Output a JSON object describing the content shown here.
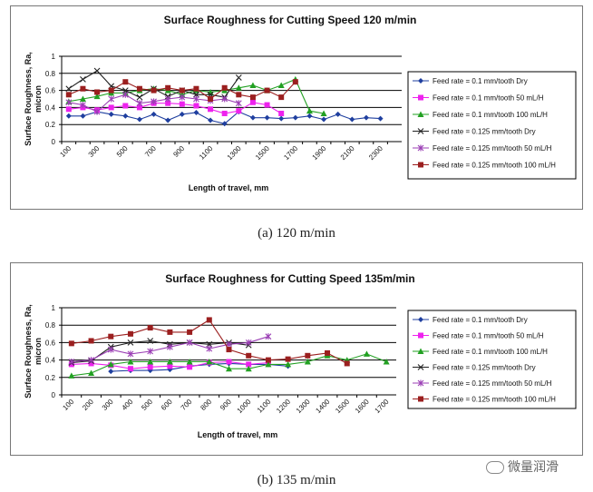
{
  "chart_data": [
    {
      "type": "line",
      "title": "Surface Roughness for Cutting Speed 120 m/min",
      "xlabel": "Length of travel, mm",
      "ylabel": "Surface Roughness, Ra, micron",
      "categories": [
        "100",
        "200",
        "300",
        "400",
        "500",
        "600",
        "700",
        "800",
        "900",
        "1000",
        "1100",
        "1200",
        "1300",
        "1400",
        "1500",
        "1600",
        "1700",
        "1800",
        "1900",
        "2000",
        "2100",
        "2200",
        "2300",
        "2400"
      ],
      "tick_labels": [
        "100",
        "300",
        "500",
        "700",
        "900",
        "1100",
        "1300",
        "1500",
        "1700",
        "1900",
        "2100",
        "2300"
      ],
      "y_ticks": [
        "0",
        "0.2",
        "0.4",
        "0.6",
        "0.8",
        "1"
      ],
      "ylim": [
        0,
        1
      ],
      "grid": "horizontal major lines",
      "legend": "right",
      "series": [
        {
          "name": "Feed rate = 0.1 mm/tooth Dry",
          "color": "#1f3f9f",
          "marker": "diamond",
          "values": [
            0.3,
            0.3,
            0.35,
            0.32,
            0.3,
            0.26,
            0.32,
            0.25,
            0.32,
            0.34,
            0.25,
            0.21,
            0.35,
            0.28,
            0.28,
            0.27,
            0.28,
            0.3,
            0.26,
            0.32,
            0.26,
            0.28,
            0.27,
            null
          ]
        },
        {
          "name": "Feed rate = 0.1 mm/tooth 50 mL/H",
          "color": "#ee22ee",
          "marker": "square",
          "values": [
            0.38,
            0.4,
            0.37,
            0.4,
            0.42,
            0.4,
            0.45,
            0.45,
            0.44,
            0.42,
            0.38,
            0.33,
            0.36,
            0.46,
            0.43,
            0.33,
            null,
            null,
            null,
            null,
            null,
            null,
            null,
            null
          ]
        },
        {
          "name": "Feed rate = 0.1 mm/tooth 100 mL/H",
          "color": "#22a022",
          "marker": "triangle",
          "values": [
            0.47,
            0.5,
            0.53,
            0.57,
            0.57,
            0.6,
            0.62,
            0.6,
            0.55,
            0.6,
            0.58,
            0.6,
            0.63,
            0.66,
            0.6,
            0.66,
            0.73,
            0.36,
            0.33,
            null,
            null,
            null,
            null,
            null
          ]
        },
        {
          "name": "Feed rate = 0.125 mm/tooth Dry",
          "color": "#222222",
          "marker": "x",
          "values": [
            0.62,
            0.73,
            0.83,
            0.65,
            0.6,
            0.52,
            0.62,
            0.53,
            0.6,
            0.55,
            0.55,
            0.52,
            0.75,
            null,
            null,
            null,
            null,
            null,
            null,
            null,
            null,
            null,
            null,
            null
          ]
        },
        {
          "name": "Feed rate = 0.125 mm/tooth 50 mL/H",
          "color": "#9b3fb5",
          "marker": "asterisk",
          "values": [
            0.46,
            0.43,
            0.35,
            0.5,
            0.55,
            0.45,
            0.47,
            0.5,
            0.52,
            0.5,
            0.48,
            0.5,
            0.45,
            null,
            null,
            null,
            null,
            null,
            null,
            null,
            null,
            null,
            null,
            null
          ]
        },
        {
          "name": "Feed rate = 0.125 mm/tooth 100 mL/H",
          "color": "#9b1f1f",
          "marker": "square",
          "values": [
            0.55,
            0.62,
            0.58,
            0.6,
            0.7,
            0.62,
            0.6,
            0.63,
            0.6,
            0.62,
            0.5,
            0.63,
            0.55,
            0.52,
            0.6,
            0.52,
            0.7,
            null,
            null,
            null,
            null,
            null,
            null,
            null
          ]
        }
      ]
    },
    {
      "type": "line",
      "title": "Surface Roughness for Cutting Speed 135m/min",
      "xlabel": "Length of travel, mm",
      "ylabel": "Surface Roughness, Ra, micron",
      "categories": [
        "100",
        "200",
        "300",
        "400",
        "500",
        "600",
        "700",
        "800",
        "900",
        "1000",
        "1100",
        "1200",
        "1300",
        "1400",
        "1500",
        "1600",
        "1700"
      ],
      "tick_labels": [
        "100",
        "200",
        "300",
        "400",
        "500",
        "600",
        "700",
        "800",
        "900",
        "1000",
        "1100",
        "1200",
        "1300",
        "1400",
        "1500",
        "1600",
        "1700"
      ],
      "y_ticks": [
        "0",
        "0.2",
        "0.4",
        "0.6",
        "0.8",
        "1"
      ],
      "ylim": [
        0,
        1
      ],
      "grid": "horizontal major lines",
      "legend": "right",
      "series": [
        {
          "name": "Feed rate = 0.1 mm/tooth Dry",
          "color": "#1f3f9f",
          "marker": "diamond",
          "values": [
            null,
            null,
            0.27,
            0.28,
            0.28,
            0.29,
            0.33,
            0.35,
            0.36,
            0.35,
            0.35,
            0.33,
            null,
            null,
            null,
            null,
            null
          ]
        },
        {
          "name": "Feed rate = 0.1 mm/tooth 50 mL/H",
          "color": "#ee22ee",
          "marker": "square",
          "values": [
            0.35,
            0.36,
            0.34,
            0.3,
            0.32,
            0.33,
            0.32,
            0.37,
            0.38,
            0.35,
            0.37,
            null,
            null,
            null,
            null,
            null,
            null
          ]
        },
        {
          "name": "Feed rate = 0.1 mm/tooth 100 mL/H",
          "color": "#22a022",
          "marker": "triangle",
          "values": [
            0.22,
            0.25,
            0.35,
            0.38,
            0.38,
            0.38,
            0.38,
            0.38,
            0.3,
            0.3,
            0.35,
            0.35,
            0.38,
            0.45,
            0.4,
            0.47,
            0.38
          ]
        },
        {
          "name": "Feed rate = 0.125 mm/tooth Dry",
          "color": "#222222",
          "marker": "x",
          "values": [
            0.37,
            0.39,
            0.55,
            0.6,
            0.62,
            0.58,
            0.6,
            0.58,
            0.6,
            0.57,
            null,
            null,
            null,
            null,
            null,
            null,
            null
          ]
        },
        {
          "name": "Feed rate = 0.125 mm/tooth 50 mL/H",
          "color": "#9b3fb5",
          "marker": "asterisk",
          "values": [
            0.38,
            0.4,
            0.52,
            0.47,
            0.5,
            0.55,
            0.6,
            0.53,
            0.58,
            0.6,
            0.67,
            null,
            null,
            null,
            null,
            null,
            null
          ]
        },
        {
          "name": "Feed rate = 0.125 mm/tooth 100 mL/H",
          "color": "#9b1f1f",
          "marker": "square",
          "values": [
            0.59,
            0.62,
            0.67,
            0.7,
            0.77,
            0.72,
            0.72,
            0.86,
            0.52,
            0.45,
            0.4,
            0.41,
            0.45,
            0.48,
            0.36,
            null,
            null
          ]
        }
      ]
    }
  ],
  "captions": {
    "a": "(a) 120 m/min",
    "b": "(b) 135 m/min"
  },
  "watermark": "微量润滑"
}
